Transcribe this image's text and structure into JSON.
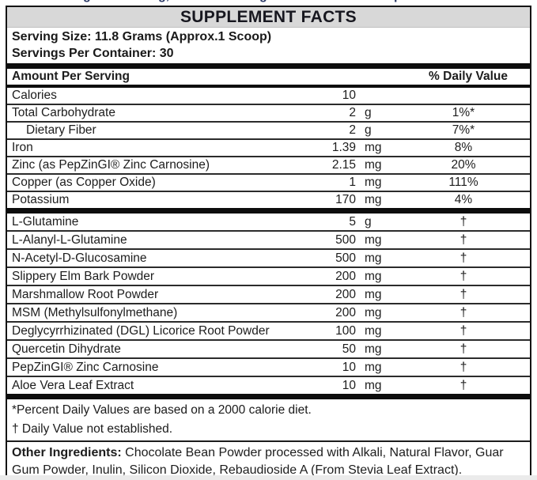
{
  "top_fragments": [
    "g",
    "g,",
    "g",
    "p"
  ],
  "title": "SUPPLEMENT FACTS",
  "serving": {
    "size_label": "Serving Size: 11.8 Grams (Approx.1 Scoop)",
    "per_container": "Servings Per Container: 30"
  },
  "table": {
    "header": {
      "amount": "Amount Per Serving",
      "daily_value": "% Daily Value"
    },
    "section1": [
      {
        "name": "Calories",
        "amount": "10",
        "unit": "",
        "dv": ""
      },
      {
        "name": "Total Carbohydrate",
        "amount": "2",
        "unit": "g",
        "dv": "1%*"
      },
      {
        "name": "Dietary Fiber",
        "amount": "2",
        "unit": "g",
        "dv": "7%*",
        "indent": true
      },
      {
        "name": "Iron",
        "amount": "1.39",
        "unit": "mg",
        "dv": "8%"
      },
      {
        "name": "Zinc (as PepZinGI® Zinc Carnosine)",
        "amount": "2.15",
        "unit": "mg",
        "dv": "20%"
      },
      {
        "name": "Copper (as Copper Oxide)",
        "amount": "1",
        "unit": "mg",
        "dv": "111%"
      },
      {
        "name": "Potassium",
        "amount": "170",
        "unit": "mg",
        "dv": "4%"
      }
    ],
    "section2": [
      {
        "name": "L-Glutamine",
        "amount": "5",
        "unit": "g",
        "dv": "†"
      },
      {
        "name": "L-Alanyl-L-Glutamine",
        "amount": "500",
        "unit": "mg",
        "dv": "†"
      },
      {
        "name": "N-Acetyl-D-Glucosamine",
        "amount": "500",
        "unit": "mg",
        "dv": "†"
      },
      {
        "name": "Slippery Elm Bark Powder",
        "amount": "200",
        "unit": "mg",
        "dv": "†"
      },
      {
        "name": "Marshmallow Root Powder",
        "amount": "200",
        "unit": "mg",
        "dv": "†"
      },
      {
        "name": "MSM (Methylsulfonylmethane)",
        "amount": "200",
        "unit": "mg",
        "dv": "†"
      },
      {
        "name": "Deglycyrrhizinated (DGL) Licorice Root Powder",
        "amount": "100",
        "unit": "mg",
        "dv": "†"
      },
      {
        "name": "Quercetin Dihydrate",
        "amount": "50",
        "unit": "mg",
        "dv": "†"
      },
      {
        "name": "PepZinGI® Zinc Carnosine",
        "amount": "10",
        "unit": "mg",
        "dv": "†"
      },
      {
        "name": "Aloe Vera Leaf Extract",
        "amount": "10",
        "unit": "mg",
        "dv": "†"
      }
    ]
  },
  "footnotes": {
    "percent": "*Percent Daily Values are based on a 2000 calorie diet.",
    "dagger": "† Daily Value not established."
  },
  "other_ingredients": {
    "label": "Other Ingredients:",
    "text": " Chocolate Bean Powder processed with Alkali, Natural Flavor, Guar Gum Powder, Inulin, Silicon Dioxide, Rebaudioside A (From Stevia Leaf Extract)."
  },
  "colors": {
    "title_bg": "#d8d8d8",
    "ink": "#1d1d1d",
    "bar": "#0d0d0d",
    "row_line": "#2b2b2b",
    "clipped_text": "#2b3a67",
    "bottom_strip": "#ebebeb"
  }
}
